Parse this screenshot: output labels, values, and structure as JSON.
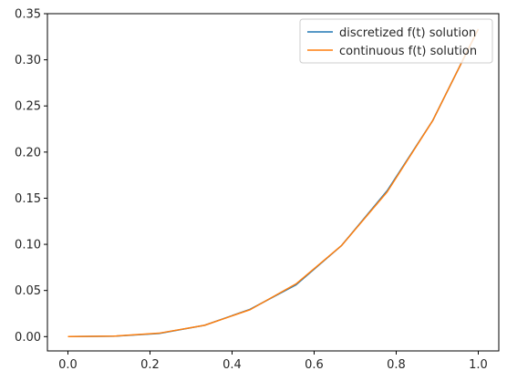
{
  "chart_data": {
    "type": "line",
    "title": "",
    "xlabel": "",
    "ylabel": "",
    "xlim": [
      -0.05,
      1.05
    ],
    "ylim": [
      -0.0155,
      0.35
    ],
    "grid": false,
    "legend_placement": "top-right",
    "x_ticks": [
      0.0,
      0.2,
      0.4,
      0.6,
      0.8,
      1.0
    ],
    "x_tick_labels": [
      "0.0",
      "0.2",
      "0.4",
      "0.6",
      "0.8",
      "1.0"
    ],
    "y_ticks": [
      0.0,
      0.05,
      0.1,
      0.15,
      0.2,
      0.25,
      0.3,
      0.35
    ],
    "y_tick_labels": [
      "0.00",
      "0.05",
      "0.10",
      "0.15",
      "0.20",
      "0.25",
      "0.30",
      "0.35"
    ],
    "series": [
      {
        "name": "discretized f(t) solution",
        "color": "#1f77b4",
        "x": [
          0.0,
          0.111,
          0.222,
          0.333,
          0.444,
          0.556,
          0.667,
          0.778,
          0.889,
          1.0
        ],
        "y": [
          0.0,
          0.0004,
          0.0034,
          0.0123,
          0.0296,
          0.0562,
          0.0988,
          0.1581,
          0.2342,
          0.3333
        ]
      },
      {
        "name": "continuous f(t) solution",
        "color": "#ff7f0e",
        "x": [
          0.0,
          0.111,
          0.222,
          0.333,
          0.444,
          0.556,
          0.667,
          0.778,
          0.889,
          1.0
        ],
        "y": [
          0.0,
          0.0005,
          0.0037,
          0.0123,
          0.0292,
          0.0572,
          0.0988,
          0.1569,
          0.2341,
          0.3333
        ]
      }
    ]
  }
}
